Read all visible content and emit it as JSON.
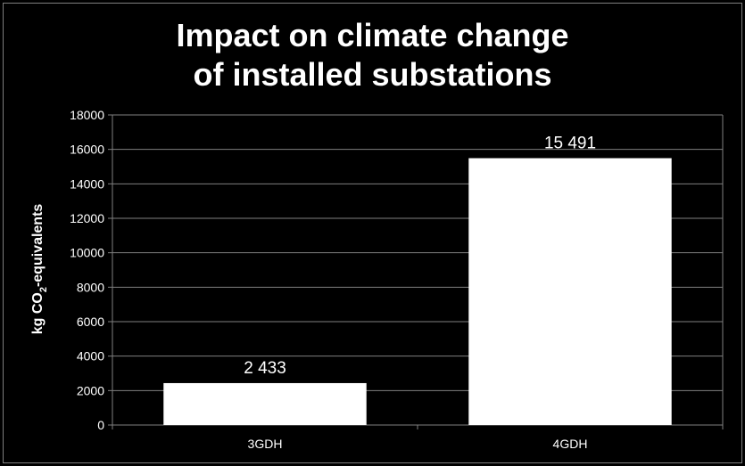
{
  "chart_data": {
    "type": "bar",
    "title_lines": [
      "Impact on climate change",
      "of installed substations"
    ],
    "categories": [
      "3GDH",
      "4GDH"
    ],
    "values": [
      2433,
      15491
    ],
    "data_labels": [
      "2 433",
      "15 491"
    ],
    "ylabel": {
      "prefix": "kg CO",
      "subscript": "2",
      "suffix": "-equivalents"
    },
    "xlabel": "",
    "ylim": [
      0,
      18000
    ],
    "y_ticks": [
      "0",
      "2000",
      "4000",
      "6000",
      "8000",
      "10000",
      "12000",
      "14000",
      "16000",
      "18000"
    ],
    "y_tick_values": [
      0,
      2000,
      4000,
      6000,
      8000,
      10000,
      12000,
      14000,
      16000,
      18000
    ],
    "grid": true,
    "legend": "none",
    "colors": {
      "background": "#000000",
      "bar": "#ffffff",
      "text": "#ffffff",
      "gridline": "#7f7f7f",
      "frame": "#7f7f7f"
    }
  }
}
